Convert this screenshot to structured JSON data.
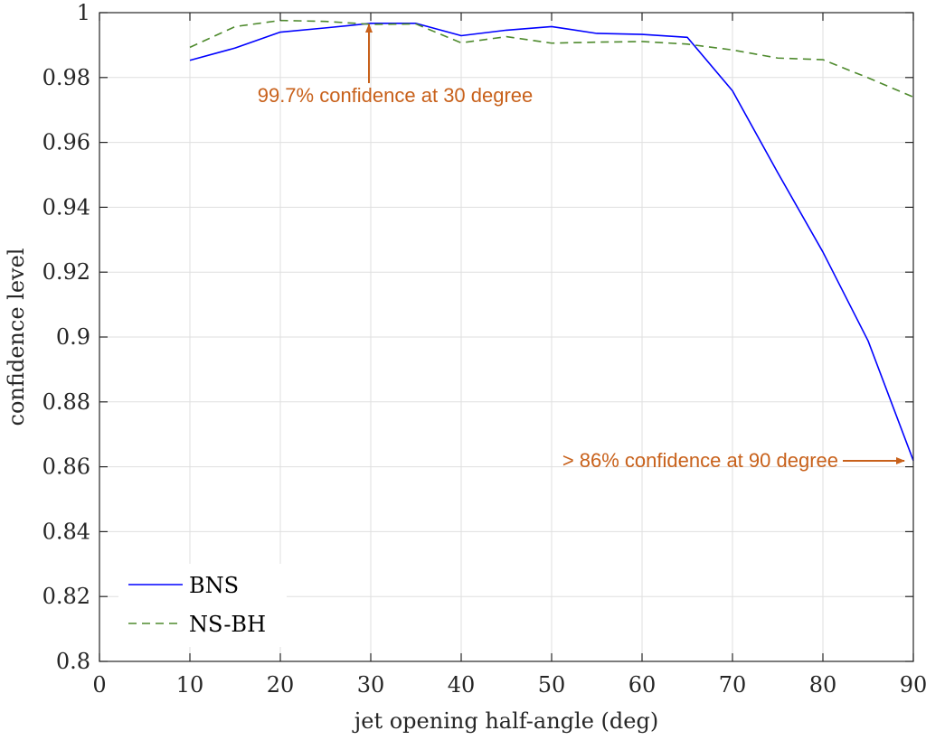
{
  "chart_data": {
    "type": "line",
    "xlabel": "jet opening half-angle (deg)",
    "ylabel": "confidence level",
    "xlim": [
      0,
      90
    ],
    "ylim": [
      0.8,
      1.0
    ],
    "x_ticks": [
      "0",
      "10",
      "20",
      "30",
      "40",
      "50",
      "60",
      "70",
      "80",
      "90"
    ],
    "y_ticks": [
      "0.8",
      "0.82",
      "0.84",
      "0.86",
      "0.88",
      "0.9",
      "0.92",
      "0.94",
      "0.96",
      "0.98",
      "1"
    ],
    "grid": true,
    "legend_position": "bottom-left",
    "series": [
      {
        "name": "BNS",
        "color": "#0000FF",
        "style": "solid",
        "x": [
          10,
          15,
          20,
          25,
          30,
          35,
          40,
          45,
          50,
          55,
          60,
          65,
          70,
          75,
          80,
          85,
          90
        ],
        "y": [
          0.9853,
          0.9891,
          0.994,
          0.9953,
          0.9967,
          0.9967,
          0.9929,
          0.9946,
          0.9957,
          0.9936,
          0.9933,
          0.9924,
          0.9759,
          0.9507,
          0.9262,
          0.8988,
          0.8619
        ]
      },
      {
        "name": "NS-BH",
        "color": "#4E8A2D",
        "style": "dashed",
        "x": [
          10,
          15,
          20,
          25,
          30,
          35,
          40,
          45,
          50,
          55,
          60,
          65,
          70,
          75,
          80,
          85,
          90
        ],
        "y": [
          0.9893,
          0.9957,
          0.9976,
          0.9973,
          0.9964,
          0.9965,
          0.9907,
          0.9926,
          0.9906,
          0.9909,
          0.9911,
          0.9903,
          0.9885,
          0.986,
          0.9855,
          0.9799,
          0.974
        ]
      }
    ],
    "annotations": [
      {
        "text": "99.7% confidence at 30 degree",
        "color": "#C8611B"
      },
      {
        "text": "> 86% confidence at 90 degree",
        "color": "#C8611B"
      }
    ]
  }
}
